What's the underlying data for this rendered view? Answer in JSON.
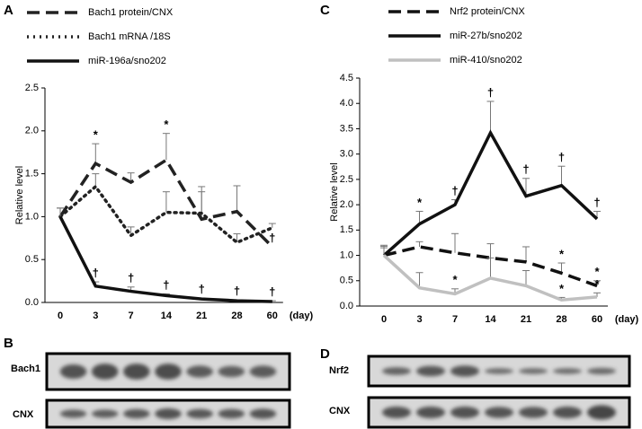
{
  "chart_data": [
    {
      "type": "line",
      "x_label": "(day)",
      "y_label": "Relative level",
      "categories": [
        "0",
        "3",
        "7",
        "14",
        "21",
        "28",
        "60"
      ],
      "ylim": [
        0,
        2.5
      ],
      "yticks": [
        {
          "value": 0,
          "label": "0.0"
        },
        0.5,
        {
          "value": 1,
          "label": "1.0"
        },
        1.5,
        {
          "value": 2,
          "label": "2.0"
        },
        2.5
      ],
      "series": [
        {
          "name": "Bach1 protein/CNX",
          "color": "#222222",
          "style": "dashed",
          "values": [
            1.0,
            1.62,
            1.4,
            1.66,
            0.97,
            1.06,
            0.65
          ],
          "errors": [
            null,
            0.23,
            0.11,
            0.31,
            0.38,
            0.3,
            null
          ],
          "annotations": [
            null,
            "*",
            null,
            "*",
            null,
            null,
            "†"
          ]
        },
        {
          "name": "Bach1 mRNA /18S",
          "color": "#222222",
          "style": "dotted",
          "values": [
            1.0,
            1.35,
            0.78,
            1.05,
            1.04,
            0.7,
            0.87
          ],
          "errors": [
            0.1,
            0.15,
            0.1,
            0.24,
            0.25,
            0.1,
            0.05
          ],
          "annotations": [
            null,
            null,
            null,
            null,
            null,
            null,
            null
          ]
        },
        {
          "name": "miR-196a/sno202",
          "color": "#111111",
          "style": "solid",
          "values": [
            1.0,
            0.19,
            0.13,
            0.08,
            0.04,
            0.02,
            0.01
          ],
          "errors": [
            0.1,
            0.05,
            0.05,
            0.02,
            0.01,
            0.01,
            0.01
          ],
          "annotations": [
            null,
            "†",
            "†",
            "†",
            "†",
            "†",
            "†"
          ]
        }
      ]
    },
    {
      "type": "line",
      "x_label": "(day)",
      "y_label": "Relative level",
      "categories": [
        "0",
        "3",
        "7",
        "14",
        "21",
        "28",
        "60"
      ],
      "ylim": [
        0,
        4.5
      ],
      "yticks": [
        {
          "value": 0,
          "label": "0.0"
        },
        0.5,
        {
          "value": 1,
          "label": "1.0"
        },
        1.5,
        {
          "value": 2,
          "label": "2.0"
        },
        2.5,
        {
          "value": 3,
          "label": "3.0"
        },
        3.5,
        {
          "value": 4,
          "label": "4.0"
        },
        4.5
      ],
      "series": [
        {
          "name": "Nrf2 protein/CNX",
          "color": "#111111",
          "style": "dashed",
          "values": [
            1.0,
            1.17,
            1.05,
            0.95,
            0.87,
            0.65,
            0.4
          ],
          "errors": [
            0.15,
            0.1,
            0.38,
            0.28,
            0.3,
            0.2,
            0.1
          ],
          "annotations": [
            null,
            null,
            null,
            null,
            null,
            "*",
            "*"
          ]
        },
        {
          "name": "miR-27b/sno202",
          "color": "#111111",
          "style": "solid",
          "values": [
            1.0,
            1.62,
            2.0,
            3.42,
            2.17,
            2.38,
            1.72
          ],
          "errors": [
            0.2,
            0.25,
            0.1,
            0.62,
            0.35,
            0.38,
            0.15
          ],
          "annotations": [
            null,
            "*",
            "†",
            "†",
            "†",
            "†",
            "†"
          ]
        },
        {
          "name": "miR-410/sno202",
          "color": "#c0c0c0",
          "style": "solid",
          "values": [
            1.0,
            0.36,
            0.24,
            0.55,
            0.4,
            0.12,
            0.18
          ],
          "errors": [
            0.18,
            0.3,
            0.1,
            0.4,
            0.3,
            0.05,
            0.08
          ],
          "annotations": [
            null,
            null,
            "*",
            null,
            null,
            "*",
            "*"
          ]
        }
      ]
    }
  ],
  "panels": {
    "labels": [
      "A",
      "B",
      "C",
      "D"
    ],
    "blots_B": [
      "Bach1",
      "CNX"
    ],
    "blots_D": [
      "Nrf2",
      "CNX"
    ]
  }
}
